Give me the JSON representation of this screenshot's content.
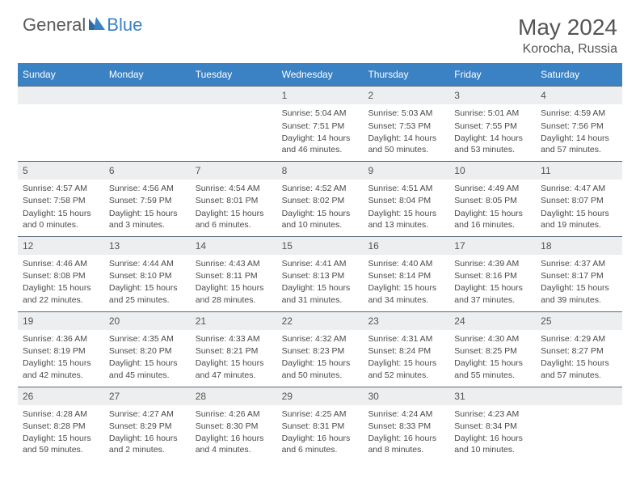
{
  "brand": {
    "part1": "General",
    "part2": "Blue"
  },
  "title": "May 2024",
  "location": "Korocha, Russia",
  "colors": {
    "header_bg": "#3b82c4",
    "daynum_bg": "#eceeef",
    "border": "#5a6a7a",
    "text": "#4a4a4a",
    "title_text": "#555",
    "brand_gray": "#5a5a5a",
    "brand_blue": "#3b82c4",
    "white": "#ffffff"
  },
  "day_headers": [
    "Sunday",
    "Monday",
    "Tuesday",
    "Wednesday",
    "Thursday",
    "Friday",
    "Saturday"
  ],
  "weeks": [
    {
      "nums": [
        "",
        "",
        "",
        "1",
        "2",
        "3",
        "4"
      ],
      "cells": [
        null,
        null,
        null,
        {
          "sunrise": "5:04 AM",
          "sunset": "7:51 PM",
          "daylight": "14 hours and 46 minutes."
        },
        {
          "sunrise": "5:03 AM",
          "sunset": "7:53 PM",
          "daylight": "14 hours and 50 minutes."
        },
        {
          "sunrise": "5:01 AM",
          "sunset": "7:55 PM",
          "daylight": "14 hours and 53 minutes."
        },
        {
          "sunrise": "4:59 AM",
          "sunset": "7:56 PM",
          "daylight": "14 hours and 57 minutes."
        }
      ]
    },
    {
      "nums": [
        "5",
        "6",
        "7",
        "8",
        "9",
        "10",
        "11"
      ],
      "cells": [
        {
          "sunrise": "4:57 AM",
          "sunset": "7:58 PM",
          "daylight": "15 hours and 0 minutes."
        },
        {
          "sunrise": "4:56 AM",
          "sunset": "7:59 PM",
          "daylight": "15 hours and 3 minutes."
        },
        {
          "sunrise": "4:54 AM",
          "sunset": "8:01 PM",
          "daylight": "15 hours and 6 minutes."
        },
        {
          "sunrise": "4:52 AM",
          "sunset": "8:02 PM",
          "daylight": "15 hours and 10 minutes."
        },
        {
          "sunrise": "4:51 AM",
          "sunset": "8:04 PM",
          "daylight": "15 hours and 13 minutes."
        },
        {
          "sunrise": "4:49 AM",
          "sunset": "8:05 PM",
          "daylight": "15 hours and 16 minutes."
        },
        {
          "sunrise": "4:47 AM",
          "sunset": "8:07 PM",
          "daylight": "15 hours and 19 minutes."
        }
      ]
    },
    {
      "nums": [
        "12",
        "13",
        "14",
        "15",
        "16",
        "17",
        "18"
      ],
      "cells": [
        {
          "sunrise": "4:46 AM",
          "sunset": "8:08 PM",
          "daylight": "15 hours and 22 minutes."
        },
        {
          "sunrise": "4:44 AM",
          "sunset": "8:10 PM",
          "daylight": "15 hours and 25 minutes."
        },
        {
          "sunrise": "4:43 AM",
          "sunset": "8:11 PM",
          "daylight": "15 hours and 28 minutes."
        },
        {
          "sunrise": "4:41 AM",
          "sunset": "8:13 PM",
          "daylight": "15 hours and 31 minutes."
        },
        {
          "sunrise": "4:40 AM",
          "sunset": "8:14 PM",
          "daylight": "15 hours and 34 minutes."
        },
        {
          "sunrise": "4:39 AM",
          "sunset": "8:16 PM",
          "daylight": "15 hours and 37 minutes."
        },
        {
          "sunrise": "4:37 AM",
          "sunset": "8:17 PM",
          "daylight": "15 hours and 39 minutes."
        }
      ]
    },
    {
      "nums": [
        "19",
        "20",
        "21",
        "22",
        "23",
        "24",
        "25"
      ],
      "cells": [
        {
          "sunrise": "4:36 AM",
          "sunset": "8:19 PM",
          "daylight": "15 hours and 42 minutes."
        },
        {
          "sunrise": "4:35 AM",
          "sunset": "8:20 PM",
          "daylight": "15 hours and 45 minutes."
        },
        {
          "sunrise": "4:33 AM",
          "sunset": "8:21 PM",
          "daylight": "15 hours and 47 minutes."
        },
        {
          "sunrise": "4:32 AM",
          "sunset": "8:23 PM",
          "daylight": "15 hours and 50 minutes."
        },
        {
          "sunrise": "4:31 AM",
          "sunset": "8:24 PM",
          "daylight": "15 hours and 52 minutes."
        },
        {
          "sunrise": "4:30 AM",
          "sunset": "8:25 PM",
          "daylight": "15 hours and 55 minutes."
        },
        {
          "sunrise": "4:29 AM",
          "sunset": "8:27 PM",
          "daylight": "15 hours and 57 minutes."
        }
      ]
    },
    {
      "nums": [
        "26",
        "27",
        "28",
        "29",
        "30",
        "31",
        ""
      ],
      "cells": [
        {
          "sunrise": "4:28 AM",
          "sunset": "8:28 PM",
          "daylight": "15 hours and 59 minutes."
        },
        {
          "sunrise": "4:27 AM",
          "sunset": "8:29 PM",
          "daylight": "16 hours and 2 minutes."
        },
        {
          "sunrise": "4:26 AM",
          "sunset": "8:30 PM",
          "daylight": "16 hours and 4 minutes."
        },
        {
          "sunrise": "4:25 AM",
          "sunset": "8:31 PM",
          "daylight": "16 hours and 6 minutes."
        },
        {
          "sunrise": "4:24 AM",
          "sunset": "8:33 PM",
          "daylight": "16 hours and 8 minutes."
        },
        {
          "sunrise": "4:23 AM",
          "sunset": "8:34 PM",
          "daylight": "16 hours and 10 minutes."
        },
        null
      ]
    }
  ],
  "labels": {
    "sunrise": "Sunrise:",
    "sunset": "Sunset:",
    "daylight": "Daylight:"
  }
}
